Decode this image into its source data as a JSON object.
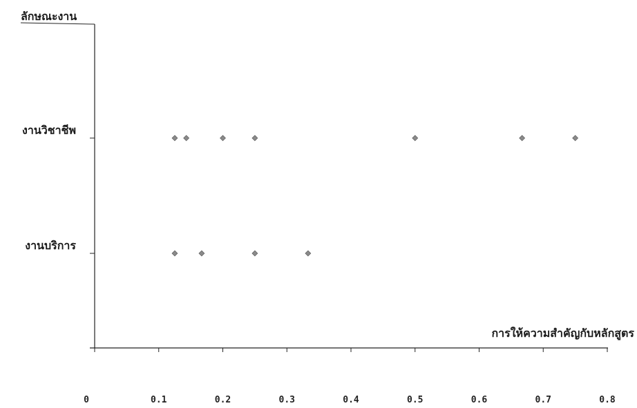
{
  "chart_data": {
    "type": "scatter",
    "title": "",
    "xlabel": "การให้ความสำคัญกับหลักสูตร",
    "ylabel": "ลักษณะงาน",
    "xlim": [
      0,
      0.8
    ],
    "x_ticks": [
      "0",
      "0.1",
      "0.2",
      "0.3",
      "0.4",
      "0.5",
      "0.6",
      "0.7",
      "0.8"
    ],
    "categories": [
      "งานวิชาชีพ",
      "งานบริการ"
    ],
    "grid": false,
    "marker_color": "#8a8a8a",
    "series": [
      {
        "category": "งานวิชาชีพ",
        "x": [
          0.125,
          0.143,
          0.2,
          0.25,
          0.5,
          0.667,
          0.75
        ]
      },
      {
        "category": "งานบริการ",
        "x": [
          0.125,
          0.167,
          0.25,
          0.333
        ]
      }
    ]
  }
}
